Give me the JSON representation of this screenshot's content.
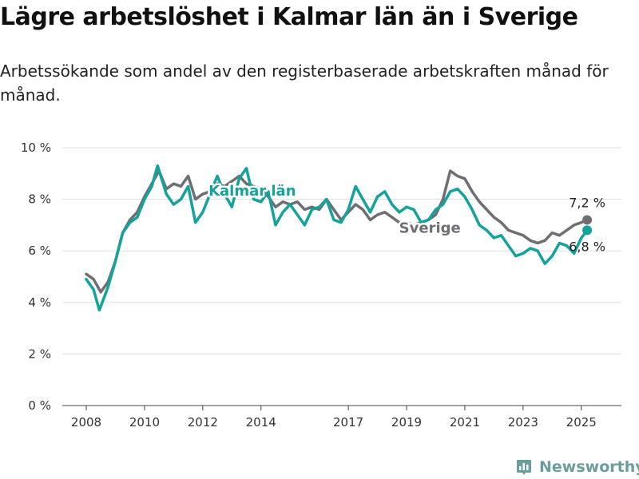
{
  "header": {
    "title": "Lägre arbetslöshet i Kalmar län än i Sverige",
    "subtitle": "Arbetssökande som andel av den registerbaserade arbetskraften månad för månad."
  },
  "brand": {
    "name": "Newsworthy"
  },
  "colors": {
    "kalmar": "#14a39a",
    "sverige": "#6e6e74",
    "grid": "#dddddd",
    "axis": "#444444"
  },
  "chart_data": {
    "type": "line",
    "title": "",
    "xlabel": "",
    "ylabel": "",
    "ylim": [
      0,
      10
    ],
    "xlim": [
      2008,
      2025.5
    ],
    "grid": "horizontal",
    "y_ticks": [
      "0 %",
      "2 %",
      "4 %",
      "6 %",
      "8 %",
      "10 %"
    ],
    "x_ticks": [
      "2008",
      "2010",
      "2012",
      "2014",
      "2017",
      "2019",
      "2021",
      "2023",
      "2025"
    ],
    "series": [
      {
        "name": "Sverige",
        "end_label": "7,2 %",
        "points": [
          [
            2008.0,
            5.1
          ],
          [
            2008.25,
            4.9
          ],
          [
            2008.5,
            4.4
          ],
          [
            2008.75,
            4.8
          ],
          [
            2009.0,
            5.6
          ],
          [
            2009.25,
            6.7
          ],
          [
            2009.5,
            7.2
          ],
          [
            2009.75,
            7.5
          ],
          [
            2010.0,
            8.1
          ],
          [
            2010.25,
            8.6
          ],
          [
            2010.5,
            9.1
          ],
          [
            2010.75,
            8.4
          ],
          [
            2011.0,
            8.6
          ],
          [
            2011.25,
            8.5
          ],
          [
            2011.5,
            8.9
          ],
          [
            2011.75,
            8.0
          ],
          [
            2012.0,
            8.2
          ],
          [
            2012.25,
            8.3
          ],
          [
            2012.5,
            8.6
          ],
          [
            2012.75,
            8.5
          ],
          [
            2013.0,
            8.7
          ],
          [
            2013.25,
            8.9
          ],
          [
            2013.5,
            8.6
          ],
          [
            2013.75,
            8.5
          ],
          [
            2014.0,
            8.4
          ],
          [
            2014.25,
            8.1
          ],
          [
            2014.5,
            7.7
          ],
          [
            2014.75,
            7.9
          ],
          [
            2015.0,
            7.8
          ],
          [
            2015.25,
            7.9
          ],
          [
            2015.5,
            7.6
          ],
          [
            2015.75,
            7.7
          ],
          [
            2016.0,
            7.6
          ],
          [
            2016.25,
            8.0
          ],
          [
            2016.5,
            7.6
          ],
          [
            2016.75,
            7.2
          ],
          [
            2017.0,
            7.5
          ],
          [
            2017.25,
            7.8
          ],
          [
            2017.5,
            7.6
          ],
          [
            2017.75,
            7.2
          ],
          [
            2018.0,
            7.4
          ],
          [
            2018.25,
            7.5
          ],
          [
            2018.5,
            7.3
          ],
          [
            2018.75,
            7.1
          ],
          [
            2019.0,
            7.1
          ],
          [
            2019.25,
            7.0
          ],
          [
            2019.5,
            7.1
          ],
          [
            2019.75,
            7.2
          ],
          [
            2020.0,
            7.4
          ],
          [
            2020.25,
            8.0
          ],
          [
            2020.5,
            9.1
          ],
          [
            2020.75,
            8.9
          ],
          [
            2021.0,
            8.8
          ],
          [
            2021.25,
            8.3
          ],
          [
            2021.5,
            7.9
          ],
          [
            2021.75,
            7.6
          ],
          [
            2022.0,
            7.3
          ],
          [
            2022.25,
            7.1
          ],
          [
            2022.5,
            6.8
          ],
          [
            2022.75,
            6.7
          ],
          [
            2023.0,
            6.6
          ],
          [
            2023.25,
            6.4
          ],
          [
            2023.5,
            6.3
          ],
          [
            2023.75,
            6.4
          ],
          [
            2024.0,
            6.7
          ],
          [
            2024.25,
            6.6
          ],
          [
            2024.5,
            6.8
          ],
          [
            2024.75,
            7.0
          ],
          [
            2025.0,
            7.1
          ],
          [
            2025.2,
            7.2
          ]
        ]
      },
      {
        "name": "Kalmar län",
        "end_label": "6,8 %",
        "points": [
          [
            2008.0,
            4.9
          ],
          [
            2008.25,
            4.5
          ],
          [
            2008.45,
            3.7
          ],
          [
            2008.75,
            4.6
          ],
          [
            2009.0,
            5.6
          ],
          [
            2009.25,
            6.7
          ],
          [
            2009.5,
            7.1
          ],
          [
            2009.75,
            7.3
          ],
          [
            2010.0,
            8.0
          ],
          [
            2010.25,
            8.5
          ],
          [
            2010.45,
            9.3
          ],
          [
            2010.75,
            8.2
          ],
          [
            2011.0,
            7.8
          ],
          [
            2011.25,
            8.0
          ],
          [
            2011.5,
            8.5
          ],
          [
            2011.75,
            7.1
          ],
          [
            2012.0,
            7.5
          ],
          [
            2012.25,
            8.2
          ],
          [
            2012.5,
            8.9
          ],
          [
            2012.75,
            8.2
          ],
          [
            2013.0,
            7.7
          ],
          [
            2013.25,
            8.8
          ],
          [
            2013.5,
            9.2
          ],
          [
            2013.75,
            8.0
          ],
          [
            2014.0,
            7.9
          ],
          [
            2014.25,
            8.3
          ],
          [
            2014.5,
            7.0
          ],
          [
            2014.75,
            7.5
          ],
          [
            2015.0,
            7.8
          ],
          [
            2015.25,
            7.4
          ],
          [
            2015.5,
            7.0
          ],
          [
            2015.75,
            7.6
          ],
          [
            2016.0,
            7.7
          ],
          [
            2016.25,
            8.0
          ],
          [
            2016.5,
            7.2
          ],
          [
            2016.75,
            7.1
          ],
          [
            2017.0,
            7.6
          ],
          [
            2017.25,
            8.5
          ],
          [
            2017.5,
            8.0
          ],
          [
            2017.75,
            7.5
          ],
          [
            2018.0,
            8.1
          ],
          [
            2018.25,
            8.3
          ],
          [
            2018.5,
            7.8
          ],
          [
            2018.75,
            7.5
          ],
          [
            2019.0,
            7.7
          ],
          [
            2019.25,
            7.6
          ],
          [
            2019.5,
            7.1
          ],
          [
            2019.75,
            7.2
          ],
          [
            2020.0,
            7.6
          ],
          [
            2020.25,
            7.8
          ],
          [
            2020.5,
            8.3
          ],
          [
            2020.75,
            8.4
          ],
          [
            2021.0,
            8.1
          ],
          [
            2021.25,
            7.6
          ],
          [
            2021.5,
            7.0
          ],
          [
            2021.75,
            6.8
          ],
          [
            2022.0,
            6.5
          ],
          [
            2022.25,
            6.6
          ],
          [
            2022.5,
            6.2
          ],
          [
            2022.75,
            5.8
          ],
          [
            2023.0,
            5.9
          ],
          [
            2023.25,
            6.1
          ],
          [
            2023.5,
            6.0
          ],
          [
            2023.75,
            5.5
          ],
          [
            2024.0,
            5.8
          ],
          [
            2024.25,
            6.3
          ],
          [
            2024.5,
            6.2
          ],
          [
            2024.75,
            5.9
          ],
          [
            2025.0,
            6.5
          ],
          [
            2025.2,
            6.8
          ]
        ]
      }
    ],
    "annotations": [
      {
        "text": "Kalmar län",
        "series": "Kalmar län",
        "x": 2013.7,
        "y": 8.15
      },
      {
        "text": "Sverige",
        "series": "Sverige",
        "x": 2019.8,
        "y": 6.7
      }
    ]
  }
}
